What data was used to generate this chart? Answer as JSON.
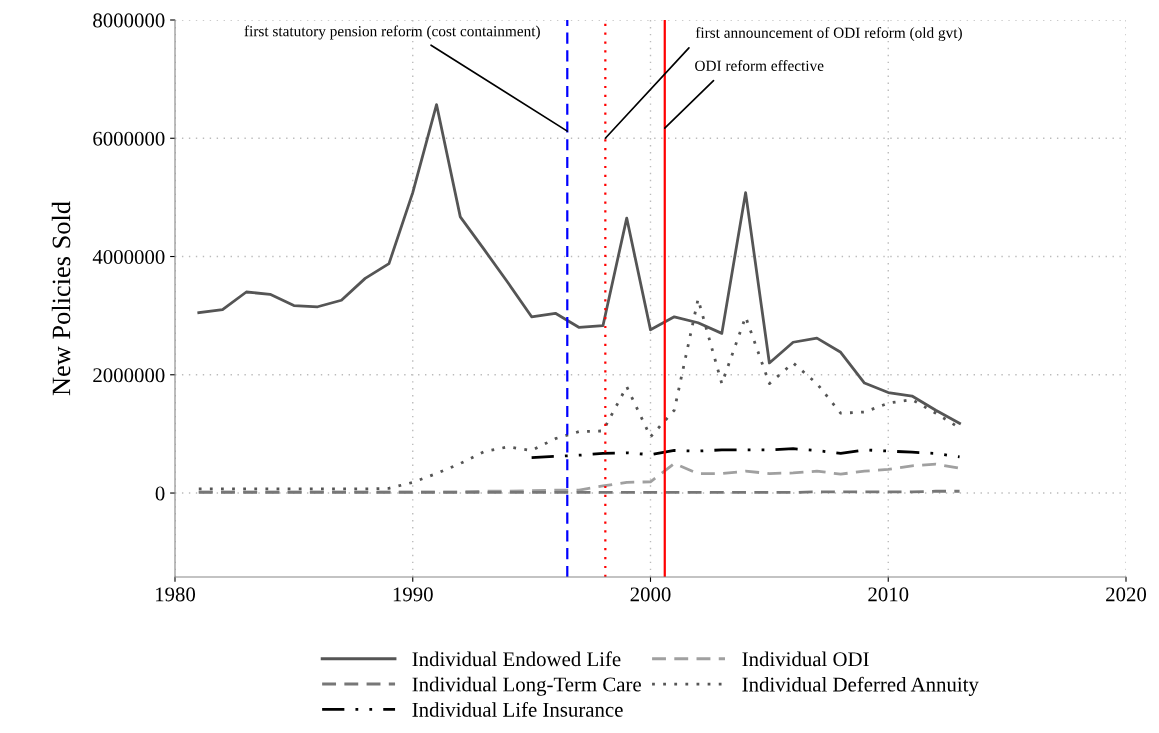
{
  "chart_data": {
    "type": "line",
    "ylabel": "New Policies Sold",
    "x": [
      1981,
      1982,
      1983,
      1984,
      1985,
      1986,
      1987,
      1988,
      1989,
      1990,
      1991,
      1992,
      1993,
      1994,
      1995,
      1996,
      1997,
      1998,
      1999,
      2000,
      2001,
      2002,
      2003,
      2004,
      2005,
      2006,
      2007,
      2008,
      2009,
      2010,
      2011,
      2012,
      2013
    ],
    "series": [
      {
        "name": "Individual Endowed Life",
        "color": "#555555",
        "line_style": "solid",
        "values": [
          3050000,
          3100000,
          3400000,
          3360000,
          3170000,
          3150000,
          3260000,
          3630000,
          3880000,
          5080000,
          6570000,
          4670000,
          4120000,
          3560000,
          2980000,
          3040000,
          2800000,
          2830000,
          4650000,
          2760000,
          2980000,
          2880000,
          2700000,
          5080000,
          2200000,
          2550000,
          2620000,
          2380000,
          1860000,
          1700000,
          1640000,
          1400000,
          1180000
        ]
      },
      {
        "name": "Individual ODI",
        "color": "#a0a0a0",
        "line_style": "dashed",
        "values": [
          20000,
          20000,
          20000,
          20000,
          20000,
          20000,
          20000,
          20000,
          20000,
          20000,
          20000,
          20000,
          30000,
          30000,
          40000,
          50000,
          50000,
          120000,
          180000,
          190000,
          500000,
          330000,
          330000,
          370000,
          330000,
          340000,
          370000,
          320000,
          370000,
          400000,
          460000,
          490000,
          420000
        ]
      },
      {
        "name": "Individual Long-Term Care",
        "color": "#777777",
        "line_style": "dashed",
        "values": [
          10000,
          10000,
          10000,
          10000,
          10000,
          10000,
          10000,
          10000,
          10000,
          10000,
          10000,
          10000,
          10000,
          10000,
          10000,
          10000,
          10000,
          10000,
          10000,
          10000,
          10000,
          10000,
          10000,
          10000,
          10000,
          10000,
          20000,
          20000,
          20000,
          20000,
          20000,
          30000,
          30000
        ]
      },
      {
        "name": "Individual Deferred Annuity",
        "color": "#555555",
        "line_style": "dotted",
        "values": [
          70000,
          70000,
          70000,
          70000,
          70000,
          70000,
          70000,
          70000,
          80000,
          180000,
          330000,
          500000,
          700000,
          780000,
          720000,
          920000,
          1040000,
          1050000,
          1800000,
          950000,
          1400000,
          3280000,
          1850000,
          2980000,
          1850000,
          2200000,
          1850000,
          1350000,
          1370000,
          1520000,
          1580000,
          1350000,
          1100000
        ]
      },
      {
        "name": "Individual Life Insurance",
        "color": "#000000",
        "line_style": "dashdot",
        "values": [
          null,
          null,
          null,
          null,
          null,
          null,
          null,
          null,
          null,
          null,
          null,
          null,
          null,
          null,
          600000,
          620000,
          640000,
          670000,
          680000,
          650000,
          720000,
          710000,
          730000,
          730000,
          730000,
          750000,
          720000,
          670000,
          730000,
          710000,
          690000,
          670000,
          610000
        ]
      }
    ],
    "xlim": [
      1980,
      2020
    ],
    "xticks": [
      1980,
      1990,
      2000,
      2010,
      2020
    ],
    "ylim": [
      -1420000,
      8000000
    ],
    "yticks": [
      0,
      2000000,
      4000000,
      6000000,
      8000000
    ],
    "grid": true,
    "legend": "bottom",
    "ref_lines": [
      {
        "axis": "x",
        "value": 1996.5,
        "color": "#0000ff",
        "line_style": "dashed"
      },
      {
        "axis": "x",
        "value": 1998.1,
        "color": "#ff0000",
        "line_style": "dotted"
      },
      {
        "axis": "x",
        "value": 2000.6,
        "color": "#ff0000",
        "line_style": "solid"
      }
    ],
    "annotations": [
      {
        "text": "first statutory pension reform (cost containment)",
        "x": 1996.5,
        "y": 6120000
      },
      {
        "text": "first announcement of ODI reform (old gvt)",
        "x": 1998.1,
        "y": 6000000
      },
      {
        "text": "ODI reform effective",
        "x": 2000.6,
        "y": 6170000
      }
    ]
  }
}
